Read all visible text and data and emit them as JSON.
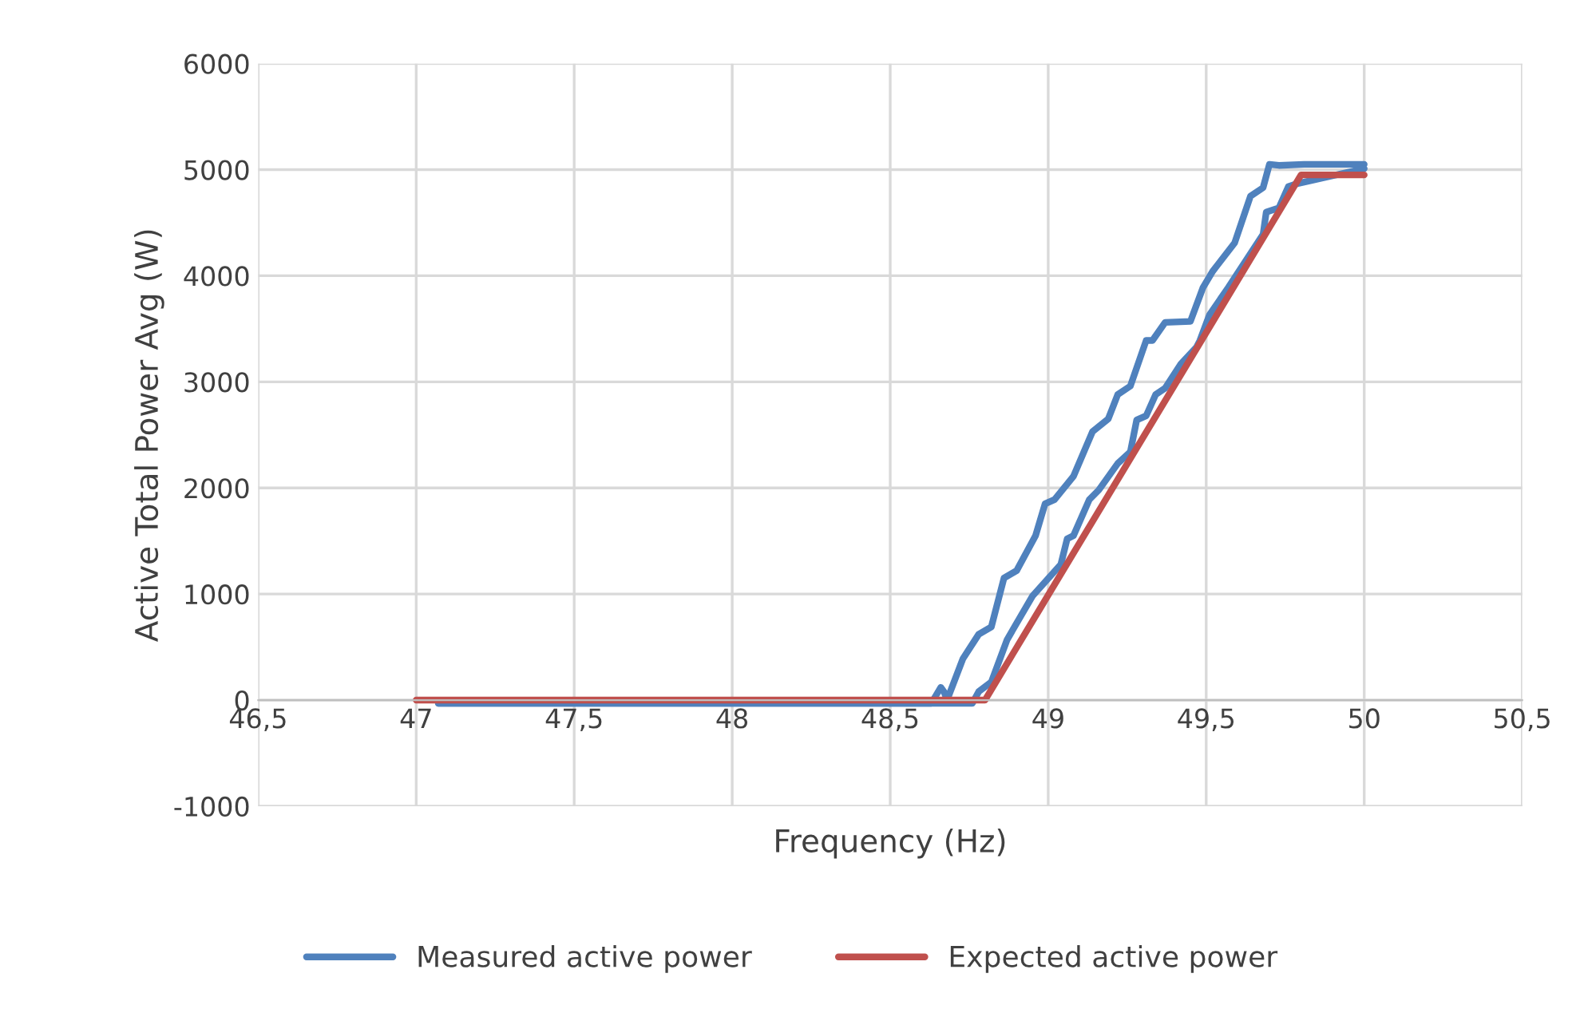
{
  "chart_data": {
    "type": "line",
    "xlabel": "Frequency (Hz)",
    "ylabel": "Active Total Power Avg (W)",
    "xlim": [
      46.5,
      50.5
    ],
    "xticks": [
      {
        "value": 46.5,
        "label": "46,5"
      },
      47,
      {
        "value": 47.5,
        "label": "47,5"
      },
      48,
      {
        "value": 48.5,
        "label": "48,5"
      },
      49,
      {
        "value": 49.5,
        "label": "49,5"
      },
      50,
      {
        "value": 50.5,
        "label": "50,5"
      }
    ],
    "ylim": [
      -1000,
      6000
    ],
    "yticks": [
      -1000,
      0,
      1000,
      2000,
      3000,
      4000,
      5000,
      6000
    ],
    "grid": true,
    "legend": "bottom",
    "line_style": "solid",
    "marker": "none",
    "series": [
      {
        "name": "Measured active power",
        "color": "#4f81bd",
        "x": [
          47.07,
          47.5,
          48.0,
          48.5,
          48.63,
          48.66,
          48.67,
          48.68,
          48.73,
          48.78,
          48.82,
          48.86,
          48.9,
          48.96,
          48.99,
          49.02,
          49.08,
          49.14,
          49.19,
          49.22,
          49.26,
          49.31,
          49.33,
          49.37,
          49.45,
          49.49,
          49.52,
          49.59,
          49.64,
          49.68,
          49.7,
          49.73,
          49.81,
          50.0
        ],
        "values": [
          -30,
          -30,
          -30,
          -30,
          -30,
          120,
          80,
          0,
          390,
          620,
          690,
          1150,
          1220,
          1550,
          1850,
          1890,
          2110,
          2530,
          2650,
          2880,
          2960,
          3390,
          3390,
          3560,
          3570,
          3890,
          4040,
          4310,
          4750,
          4830,
          5050,
          5040,
          5050,
          5050
        ]
      },
      {
        "color": "#4f81bd",
        "x": [
          47.07,
          47.5,
          48.0,
          48.5,
          48.76,
          48.78,
          48.82,
          48.87,
          48.95,
          49.04,
          49.06,
          49.08,
          49.13,
          49.16,
          49.22,
          49.26,
          49.28,
          49.31,
          49.34,
          49.37,
          49.42,
          49.47,
          49.48,
          49.51,
          49.57,
          49.68,
          49.69,
          49.73,
          49.76,
          49.79,
          50.0
        ],
        "values": [
          -30,
          -30,
          -30,
          -30,
          -30,
          80,
          170,
          570,
          980,
          1280,
          1520,
          1550,
          1890,
          1980,
          2230,
          2340,
          2640,
          2680,
          2880,
          2940,
          3170,
          3330,
          3390,
          3630,
          3890,
          4390,
          4600,
          4640,
          4840,
          4870,
          5010
        ]
      },
      {
        "name": "Expected active power",
        "color": "#c0504d",
        "x": [
          47,
          48.8,
          49.8,
          50
        ],
        "values": [
          0,
          0,
          4950,
          4950
        ]
      }
    ]
  }
}
